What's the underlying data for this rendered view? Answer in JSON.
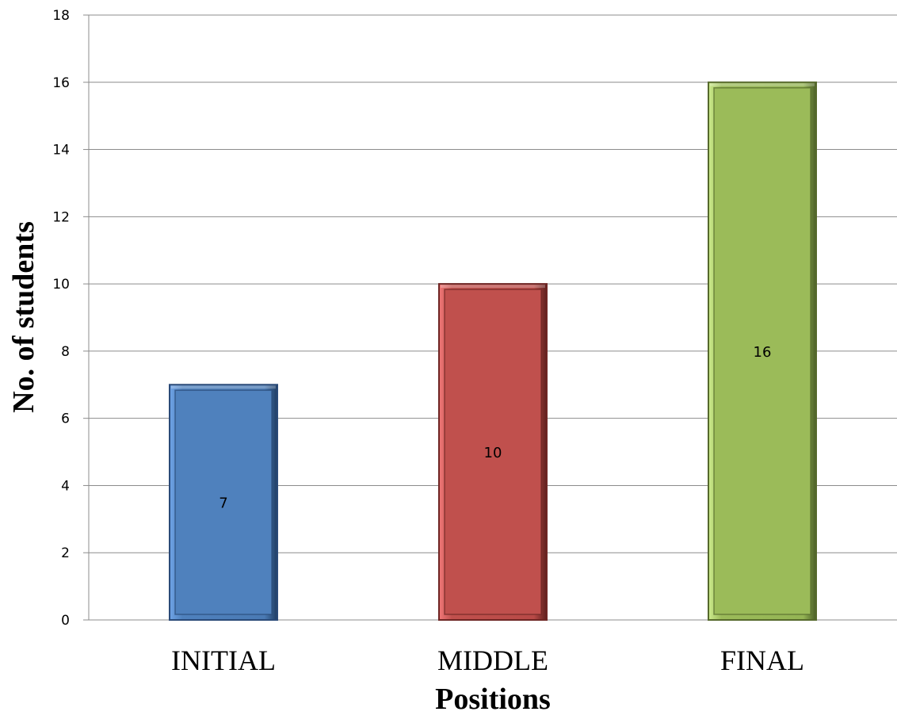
{
  "chart_data": {
    "type": "bar",
    "title": "",
    "xlabel": "Positions",
    "ylabel": "No. of students",
    "categories": [
      "INITIAL",
      "MIDDLE",
      "FINAL"
    ],
    "values": [
      7,
      10,
      16
    ],
    "data_labels": [
      "7",
      "10",
      "16"
    ],
    "ylim": [
      0,
      18
    ],
    "yticks": [
      0,
      2,
      4,
      6,
      8,
      10,
      12,
      14,
      16,
      18
    ],
    "grid": true,
    "legend": "none",
    "bar_colors": [
      "#4f81bd",
      "#c0504d",
      "#9bbb59"
    ]
  }
}
